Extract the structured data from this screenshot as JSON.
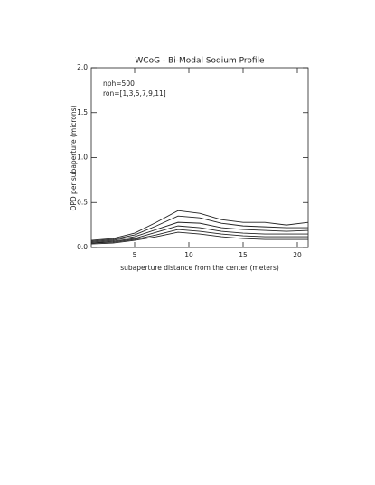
{
  "chart_data": {
    "type": "line",
    "title": "WCoG - Bi-Modal Sodium Profile",
    "x_label": "subaperture distance from the center (meters)",
    "y_label": "OPD per subaperture (microns)",
    "annotations": [
      "nph=500",
      "ron=[1,3,5,7,9,11]"
    ],
    "x": [
      1,
      3,
      5,
      7,
      9,
      11,
      13,
      15,
      17,
      19,
      21
    ],
    "series": [
      {
        "color": "#222222",
        "values": [
          0.08,
          0.1,
          0.16,
          0.28,
          0.41,
          0.38,
          0.31,
          0.28,
          0.28,
          0.25,
          0.28
        ]
      },
      {
        "color": "#222222",
        "values": [
          0.07,
          0.09,
          0.14,
          0.24,
          0.35,
          0.33,
          0.27,
          0.24,
          0.23,
          0.22,
          0.22
        ]
      },
      {
        "color": "#222222",
        "values": [
          0.06,
          0.08,
          0.12,
          0.2,
          0.28,
          0.27,
          0.22,
          0.2,
          0.19,
          0.18,
          0.19
        ]
      },
      {
        "color": "#222222",
        "values": [
          0.05,
          0.07,
          0.1,
          0.17,
          0.24,
          0.22,
          0.18,
          0.16,
          0.15,
          0.15,
          0.15
        ]
      },
      {
        "color": "#222222",
        "values": [
          0.05,
          0.06,
          0.09,
          0.14,
          0.2,
          0.18,
          0.15,
          0.13,
          0.12,
          0.12,
          0.12
        ]
      },
      {
        "color": "#222222",
        "values": [
          0.04,
          0.05,
          0.08,
          0.12,
          0.17,
          0.15,
          0.12,
          0.1,
          0.09,
          0.09,
          0.09
        ]
      }
    ],
    "xlim": [
      1,
      21
    ],
    "xticks": [
      5,
      10,
      15,
      20
    ],
    "ylim": [
      0,
      2
    ],
    "yticks": [
      {
        "value": 0,
        "label": "0.0"
      },
      {
        "value": 0.5,
        "label": "0.5"
      },
      {
        "value": 1,
        "label": "1.0"
      },
      {
        "value": 1.5,
        "label": "1.5"
      },
      {
        "value": 2,
        "label": "2.0"
      }
    ]
  }
}
